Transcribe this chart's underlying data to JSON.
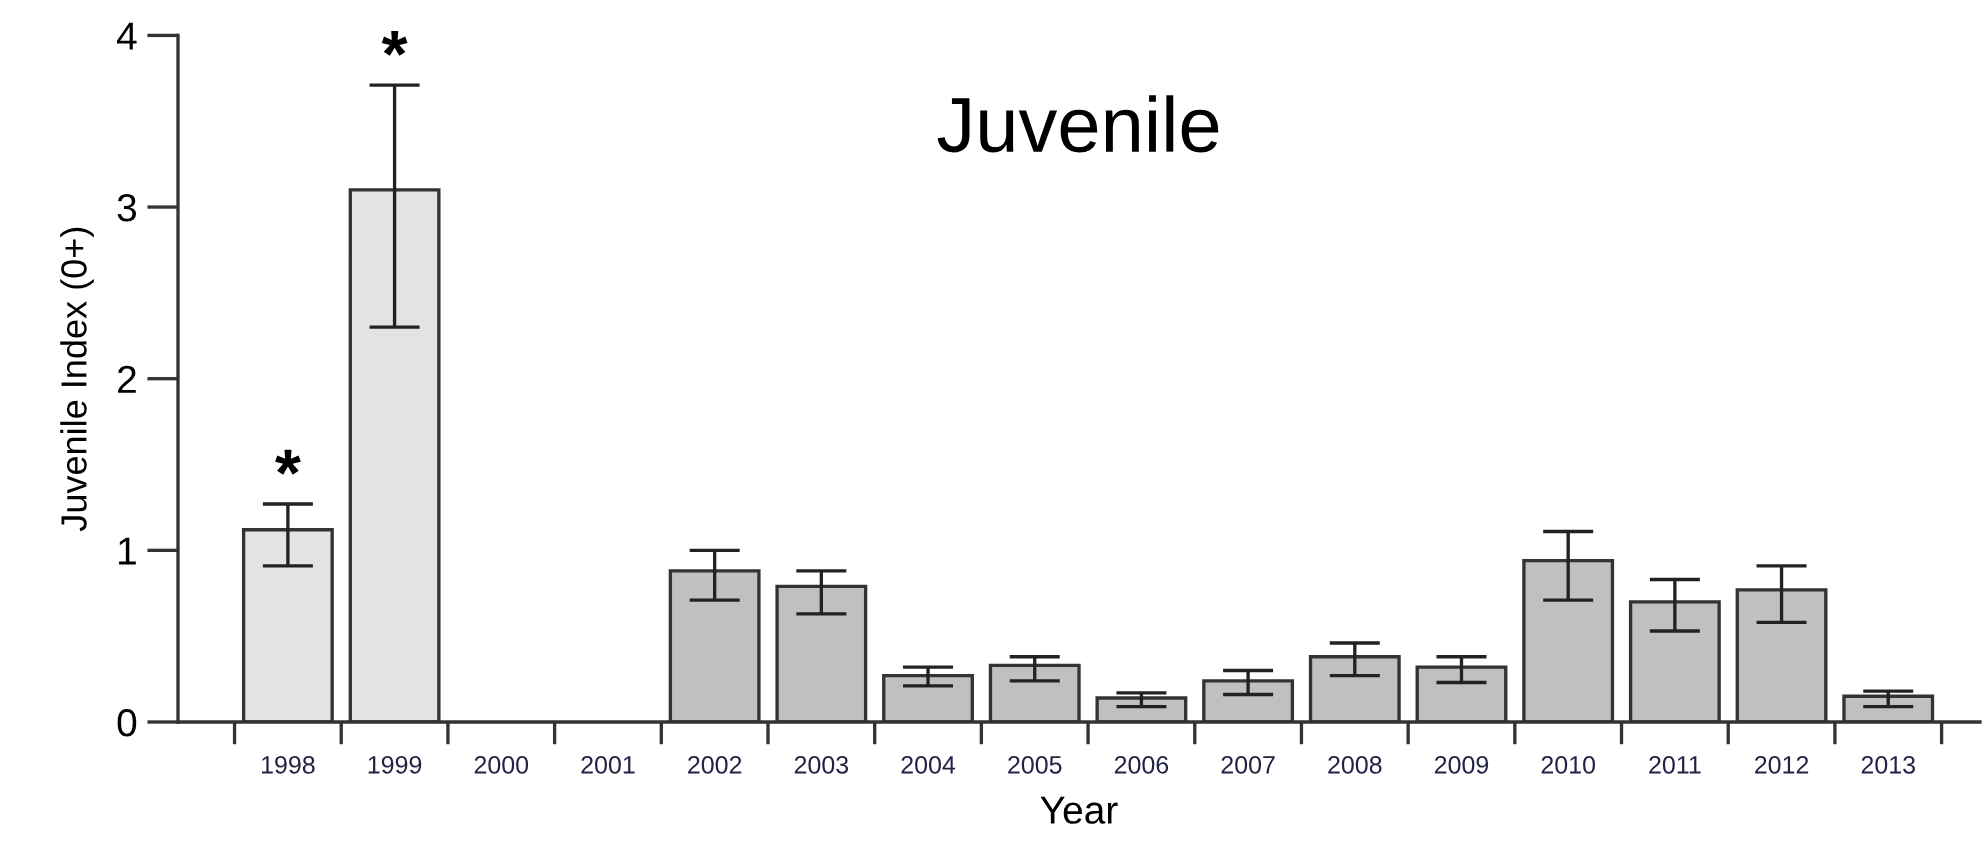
{
  "chart_data": {
    "type": "bar",
    "title": "Juvenile",
    "xlabel": "Year",
    "ylabel": "Juvenile Index (0+)",
    "categories": [
      "1998",
      "1999",
      "2000",
      "2001",
      "2002",
      "2003",
      "2004",
      "2005",
      "2006",
      "2007",
      "2008",
      "2009",
      "2010",
      "2011",
      "2012",
      "2013"
    ],
    "values": [
      1.12,
      3.1,
      null,
      null,
      0.88,
      0.79,
      0.27,
      0.33,
      0.14,
      0.24,
      0.38,
      0.32,
      0.94,
      0.7,
      0.77,
      0.15
    ],
    "errors": [
      [
        0.91,
        1.27
      ],
      [
        2.3,
        3.71
      ],
      null,
      null,
      [
        0.71,
        1.0
      ],
      [
        0.63,
        0.88
      ],
      [
        0.21,
        0.32
      ],
      [
        0.24,
        0.38
      ],
      [
        0.09,
        0.17
      ],
      [
        0.16,
        0.3
      ],
      [
        0.27,
        0.46
      ],
      [
        0.23,
        0.38
      ],
      [
        0.71,
        1.11
      ],
      [
        0.53,
        0.83
      ],
      [
        0.58,
        0.91
      ],
      [
        0.09,
        0.18
      ]
    ],
    "colors": [
      "#e3e3e3",
      "#e3e3e3",
      "#c0c0c0",
      "#c0c0c0",
      "#c0c0c0",
      "#c0c0c0",
      "#c0c0c0",
      "#c0c0c0",
      "#c0c0c0",
      "#c0c0c0",
      "#c0c0c0",
      "#c0c0c0",
      "#c0c0c0",
      "#c0c0c0",
      "#c0c0c0",
      "#c0c0c0"
    ],
    "ylim": [
      0,
      4
    ],
    "yticks": [
      0,
      1,
      2,
      3,
      4
    ],
    "grid": false,
    "legend": false,
    "annotations": [
      {
        "text": "*",
        "x": "1998",
        "y": 1.27
      },
      {
        "text": "*",
        "x": "1999",
        "y": 3.71
      }
    ]
  }
}
